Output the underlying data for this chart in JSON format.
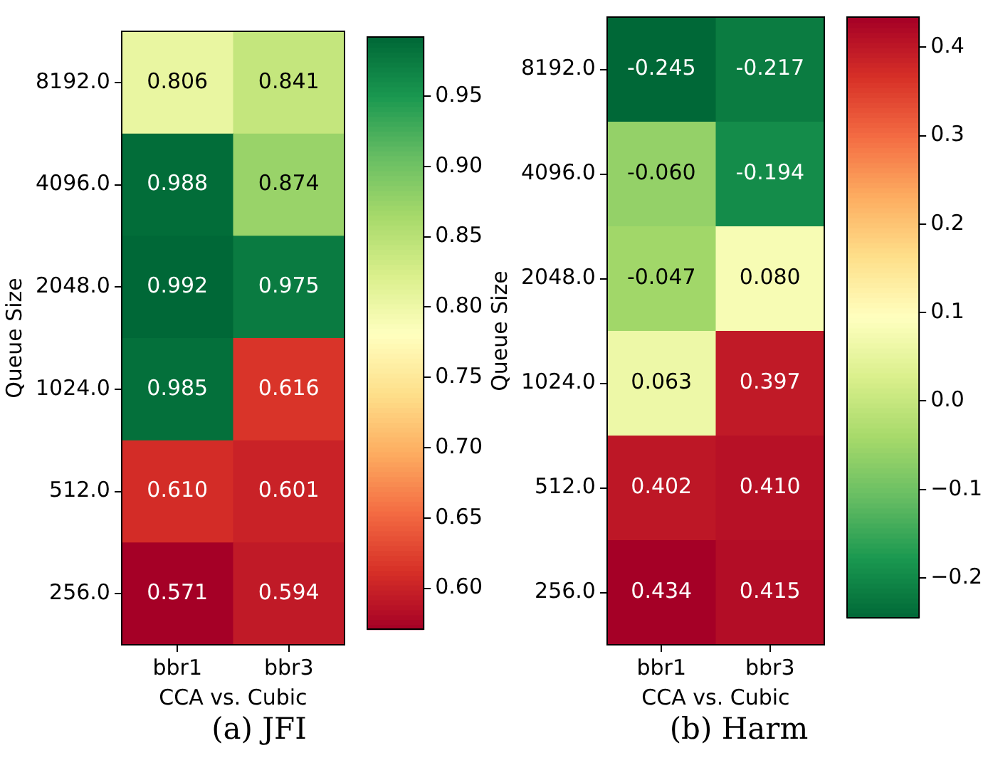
{
  "chart_data": [
    {
      "type": "heatmap",
      "title": "(a) JFI",
      "xlabel": "CCA vs. Cubic",
      "ylabel": "Queue Size",
      "categories": [
        "bbr1",
        "bbr3"
      ],
      "y_categories": [
        "8192.0",
        "4096.0",
        "2048.0",
        "1024.0",
        "512.0",
        "256.0"
      ],
      "cells": [
        [
          0.806,
          0.841
        ],
        [
          0.988,
          0.874
        ],
        [
          0.992,
          0.975
        ],
        [
          0.985,
          0.616
        ],
        [
          0.61,
          0.601
        ],
        [
          0.571,
          0.594
        ]
      ],
      "cell_labels": [
        [
          "0.806",
          "0.841"
        ],
        [
          "0.988",
          "0.874"
        ],
        [
          "0.992",
          "0.975"
        ],
        [
          "0.985",
          "0.616"
        ],
        [
          "0.610",
          "0.601"
        ],
        [
          "0.571",
          "0.594"
        ]
      ],
      "clim": [
        0.571,
        0.992
      ],
      "cticks": [
        {
          "value": 0.6,
          "label": "0.60"
        },
        {
          "value": 0.65,
          "label": "0.65"
        },
        {
          "value": 0.7,
          "label": "0.70"
        },
        {
          "value": 0.75,
          "label": "0.75"
        },
        {
          "value": 0.8,
          "label": "0.80"
        },
        {
          "value": 0.85,
          "label": "0.85"
        },
        {
          "value": 0.9,
          "label": "0.90"
        },
        {
          "value": 0.95,
          "label": "0.95"
        }
      ],
      "colors": [
        "#a50026",
        "#d73027",
        "#f46d43",
        "#fdae61",
        "#fee08b",
        "#ffffbf",
        "#d9ef8b",
        "#a6d96a",
        "#66bd63",
        "#1a9850",
        "#006837"
      ]
    },
    {
      "type": "heatmap",
      "title": "(b) Harm",
      "xlabel": "CCA vs. Cubic",
      "ylabel": "Queue Size",
      "categories": [
        "bbr1",
        "bbr3"
      ],
      "y_categories": [
        "8192.0",
        "4096.0",
        "2048.0",
        "1024.0",
        "512.0",
        "256.0"
      ],
      "cells": [
        [
          -0.245,
          -0.217
        ],
        [
          -0.06,
          -0.194
        ],
        [
          -0.047,
          0.08
        ],
        [
          0.063,
          0.397
        ],
        [
          0.402,
          0.41
        ],
        [
          0.434,
          0.415
        ]
      ],
      "cell_labels": [
        [
          "-0.245",
          "-0.217"
        ],
        [
          "-0.060",
          "-0.194"
        ],
        [
          "-0.047",
          "0.080"
        ],
        [
          "0.063",
          "0.397"
        ],
        [
          "0.402",
          "0.410"
        ],
        [
          "0.434",
          "0.415"
        ]
      ],
      "clim": [
        -0.245,
        0.434
      ],
      "cticks": [
        {
          "value": -0.2,
          "label": "−0.2"
        },
        {
          "value": -0.1,
          "label": "−0.1"
        },
        {
          "value": 0,
          "label": "0.0"
        },
        {
          "value": 0.1,
          "label": "0.1"
        },
        {
          "value": 0.2,
          "label": "0.2"
        },
        {
          "value": 0.3,
          "label": "0.3"
        },
        {
          "value": 0.4,
          "label": "0.4"
        }
      ],
      "colors": [
        "#006837",
        "#1a9850",
        "#66bd63",
        "#a6d96a",
        "#d9ef8b",
        "#ffffbf",
        "#fee08b",
        "#fdae61",
        "#f46d43",
        "#d73027",
        "#a50026"
      ]
    }
  ]
}
